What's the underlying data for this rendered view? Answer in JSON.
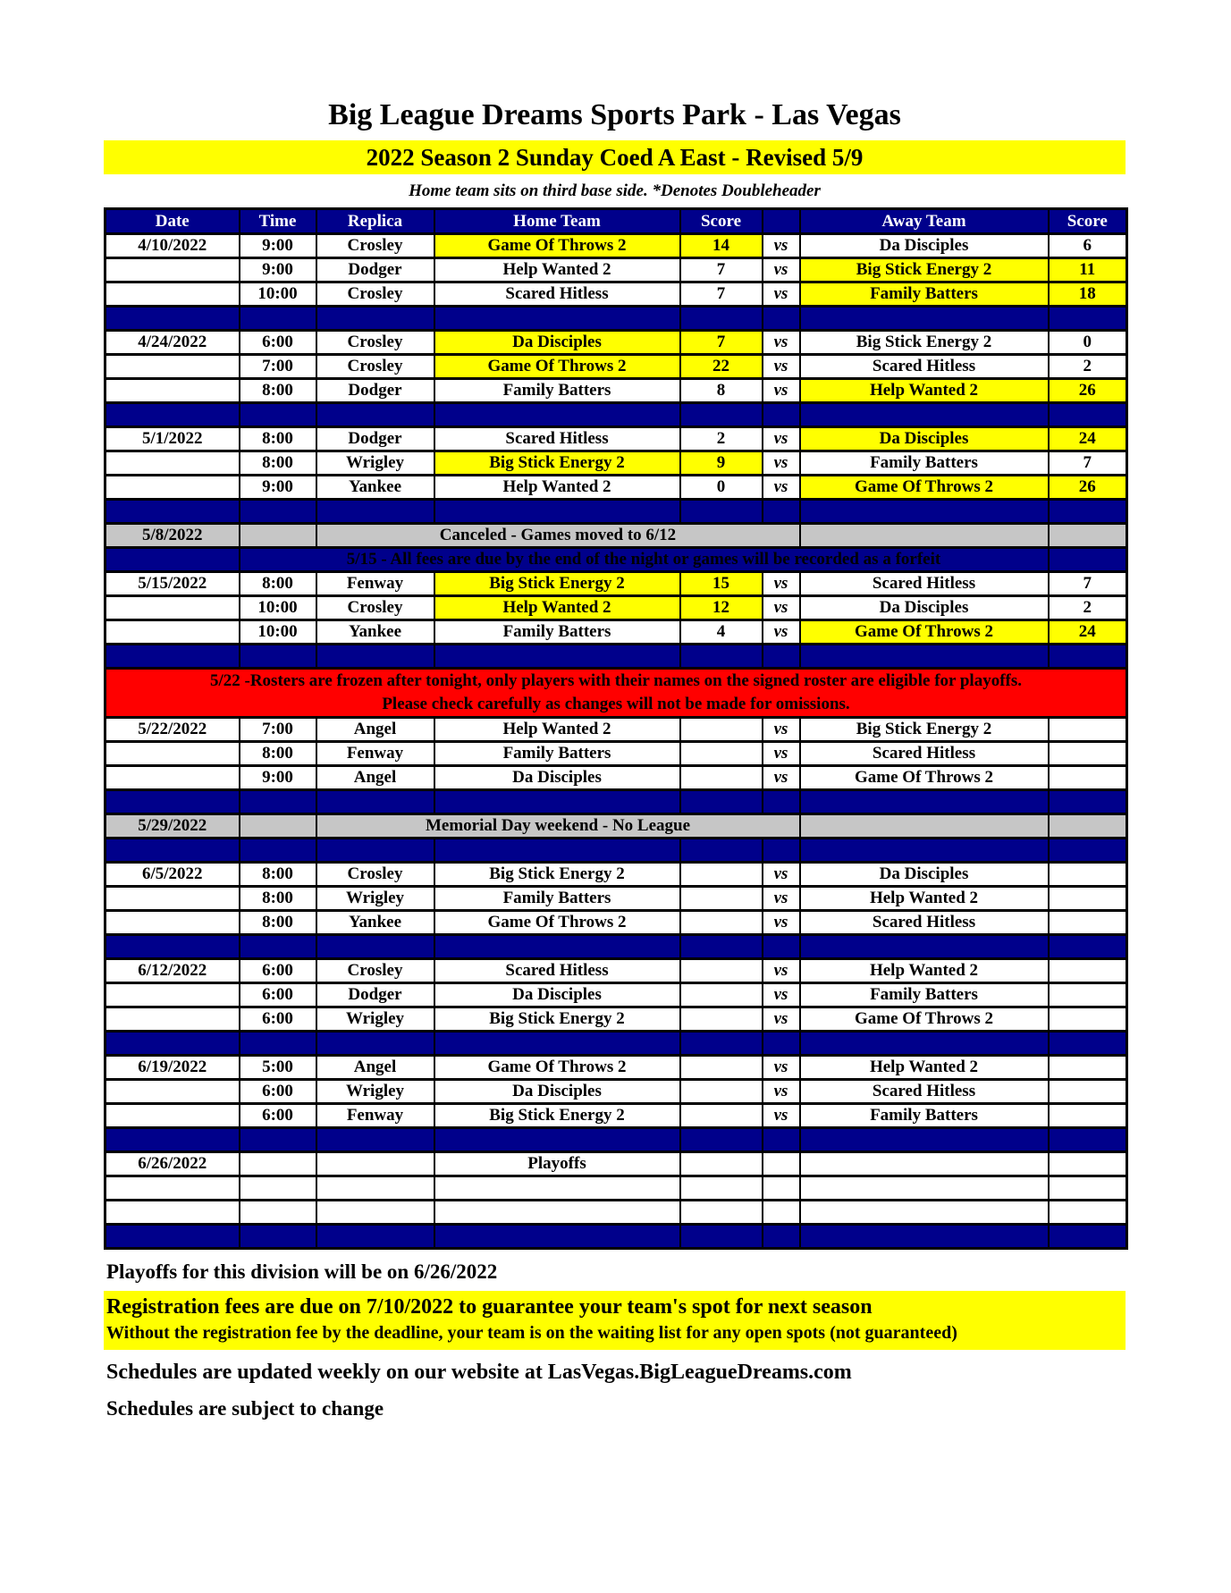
{
  "header": {
    "title": "Big League Dreams Sports Park - Las Vegas",
    "banner": "2022 Season 2 Sunday Coed A East - Revised 5/9",
    "note": "Home team sits on third base side.  *Denotes Doubleheader"
  },
  "table": {
    "columns": [
      "Date",
      "Time",
      "Replica",
      "Home Team",
      "Score",
      "",
      "Away Team",
      "Score"
    ],
    "vs_label": "vs",
    "rows": [
      {
        "type": "game",
        "date": "4/10/2022",
        "time": "9:00",
        "replica": "Crosley",
        "home": "Game Of Throws 2",
        "home_score": "14",
        "away": "Da Disciples",
        "away_score": "6",
        "home_win": true,
        "away_win": false
      },
      {
        "type": "game",
        "date": "",
        "time": "9:00",
        "replica": "Dodger",
        "home": "Help Wanted 2",
        "home_score": "7",
        "away": "Big Stick Energy 2",
        "away_score": "11",
        "home_win": false,
        "away_win": true
      },
      {
        "type": "game",
        "date": "",
        "time": "10:00",
        "replica": "Crosley",
        "home": "Scared Hitless",
        "home_score": "7",
        "away": "Family Batters",
        "away_score": "18",
        "home_win": false,
        "away_win": true
      },
      {
        "type": "separator"
      },
      {
        "type": "game",
        "date": "4/24/2022",
        "time": "6:00",
        "replica": "Crosley",
        "home": "Da Disciples",
        "home_score": "7",
        "away": "Big Stick Energy 2",
        "away_score": "0",
        "home_win": true,
        "away_win": false
      },
      {
        "type": "game",
        "date": "",
        "time": "7:00",
        "replica": "Crosley",
        "home": "Game Of Throws 2",
        "home_score": "22",
        "away": "Scared Hitless",
        "away_score": "2",
        "home_win": true,
        "away_win": false
      },
      {
        "type": "game",
        "date": "",
        "time": "8:00",
        "replica": "Dodger",
        "home": "Family Batters",
        "home_score": "8",
        "away": "Help Wanted 2",
        "away_score": "26",
        "home_win": false,
        "away_win": true
      },
      {
        "type": "separator"
      },
      {
        "type": "game",
        "date": "5/1/2022",
        "time": "8:00",
        "replica": "Dodger",
        "home": "Scared Hitless",
        "home_score": "2",
        "away": "Da Disciples",
        "away_score": "24",
        "home_win": false,
        "away_win": true
      },
      {
        "type": "game",
        "date": "",
        "time": "8:00",
        "replica": "Wrigley",
        "home": "Big Stick Energy 2",
        "home_score": "9",
        "away": "Family Batters",
        "away_score": "7",
        "home_win": true,
        "away_win": false
      },
      {
        "type": "game",
        "date": "",
        "time": "9:00",
        "replica": "Yankee",
        "home": "Help Wanted 2",
        "home_score": "0",
        "away": "Game Of Throws 2",
        "away_score": "26",
        "home_win": false,
        "away_win": true
      },
      {
        "type": "separator"
      },
      {
        "type": "notice",
        "style": "gray",
        "date": "5/8/2022",
        "text": "Canceled - Games moved to 6/12"
      },
      {
        "type": "notice",
        "style": "navy",
        "date": "",
        "text": "5/15 - All fees are due by the end of the night or games will be recorded as a forfeit"
      },
      {
        "type": "game",
        "date": "5/15/2022",
        "time": "8:00",
        "replica": "Fenway",
        "home": "Big Stick Energy 2",
        "home_score": "15",
        "away": "Scared Hitless",
        "away_score": "7",
        "home_win": true,
        "away_win": false
      },
      {
        "type": "game",
        "date": "",
        "time": "10:00",
        "replica": "Crosley",
        "home": "Help Wanted 2",
        "home_score": "12",
        "away": "Da Disciples",
        "away_score": "2",
        "home_win": true,
        "away_win": false
      },
      {
        "type": "game",
        "date": "",
        "time": "10:00",
        "replica": "Yankee",
        "home": "Family Batters",
        "home_score": "4",
        "away": "Game Of Throws 2",
        "away_score": "24",
        "home_win": false,
        "away_win": true
      },
      {
        "type": "separator"
      },
      {
        "type": "banner",
        "style": "red",
        "lines": [
          "5/22 -Rosters are frozen after tonight, only players with their names on the signed roster are eligible for playoffs.",
          "Please check carefully as changes will not be made for omissions."
        ]
      },
      {
        "type": "game",
        "date": "5/22/2022",
        "time": "7:00",
        "replica": "Angel",
        "home": "Help Wanted 2",
        "home_score": "",
        "away": "Big Stick Energy 2",
        "away_score": "",
        "home_win": false,
        "away_win": false
      },
      {
        "type": "game",
        "date": "",
        "time": "8:00",
        "replica": "Fenway",
        "home": "Family Batters",
        "home_score": "",
        "away": "Scared Hitless",
        "away_score": "",
        "home_win": false,
        "away_win": false
      },
      {
        "type": "game",
        "date": "",
        "time": "9:00",
        "replica": "Angel",
        "home": "Da Disciples",
        "home_score": "",
        "away": "Game Of Throws 2",
        "away_score": "",
        "home_win": false,
        "away_win": false
      },
      {
        "type": "separator"
      },
      {
        "type": "notice",
        "style": "gray",
        "date": "5/29/2022",
        "text": "Memorial Day weekend - No League"
      },
      {
        "type": "separator"
      },
      {
        "type": "game",
        "date": "6/5/2022",
        "time": "8:00",
        "replica": "Crosley",
        "home": "Big Stick Energy 2",
        "home_score": "",
        "away": "Da Disciples",
        "away_score": "",
        "home_win": false,
        "away_win": false
      },
      {
        "type": "game",
        "date": "",
        "time": "8:00",
        "replica": "Wrigley",
        "home": "Family Batters",
        "home_score": "",
        "away": "Help Wanted 2",
        "away_score": "",
        "home_win": false,
        "away_win": false
      },
      {
        "type": "game",
        "date": "",
        "time": "8:00",
        "replica": "Yankee",
        "home": "Game Of Throws 2",
        "home_score": "",
        "away": "Scared Hitless",
        "away_score": "",
        "home_win": false,
        "away_win": false
      },
      {
        "type": "separator"
      },
      {
        "type": "game",
        "date": "6/12/2022",
        "time": "6:00",
        "replica": "Crosley",
        "home": "Scared Hitless",
        "home_score": "",
        "away": "Help Wanted 2",
        "away_score": "",
        "home_win": false,
        "away_win": false
      },
      {
        "type": "game",
        "date": "",
        "time": "6:00",
        "replica": "Dodger",
        "home": "Da Disciples",
        "home_score": "",
        "away": "Family Batters",
        "away_score": "",
        "home_win": false,
        "away_win": false
      },
      {
        "type": "game",
        "date": "",
        "time": "6:00",
        "replica": "Wrigley",
        "home": "Big Stick Energy 2",
        "home_score": "",
        "away": "Game Of Throws 2",
        "away_score": "",
        "home_win": false,
        "away_win": false
      },
      {
        "type": "separator"
      },
      {
        "type": "game",
        "date": "6/19/2022",
        "time": "5:00",
        "replica": "Angel",
        "home": "Game Of Throws 2",
        "home_score": "",
        "away": "Help Wanted 2",
        "away_score": "",
        "home_win": false,
        "away_win": false
      },
      {
        "type": "game",
        "date": "",
        "time": "6:00",
        "replica": "Wrigley",
        "home": "Da Disciples",
        "home_score": "",
        "away": "Scared Hitless",
        "away_score": "",
        "home_win": false,
        "away_win": false
      },
      {
        "type": "game",
        "date": "",
        "time": "6:00",
        "replica": "Fenway",
        "home": "Big Stick Energy 2",
        "home_score": "",
        "away": "Family Batters",
        "away_score": "",
        "home_win": false,
        "away_win": false
      },
      {
        "type": "separator"
      },
      {
        "type": "label",
        "date": "6/26/2022",
        "text": "Playoffs"
      },
      {
        "type": "empty"
      },
      {
        "type": "empty"
      },
      {
        "type": "separator"
      }
    ]
  },
  "footer": {
    "playoffs_note": "Playoffs for this division will be on 6/26/2022",
    "registration_line1": "Registration fees are due on 7/10/2022 to guarantee your team's spot for next season",
    "registration_line2": "Without the registration fee by the deadline, your team is on the waiting list for any open spots (not guaranteed)",
    "schedules_line1": "Schedules are updated weekly on our website at LasVegas.BigLeagueDreams.com",
    "schedules_line2": "Schedules are subject to change"
  },
  "colors": {
    "navy": "#00008B",
    "yellow": "#FFFF00",
    "gray": "#C6C6C6",
    "red": "#FF0000",
    "highlight_meaning": "yellow cell = winning team"
  }
}
